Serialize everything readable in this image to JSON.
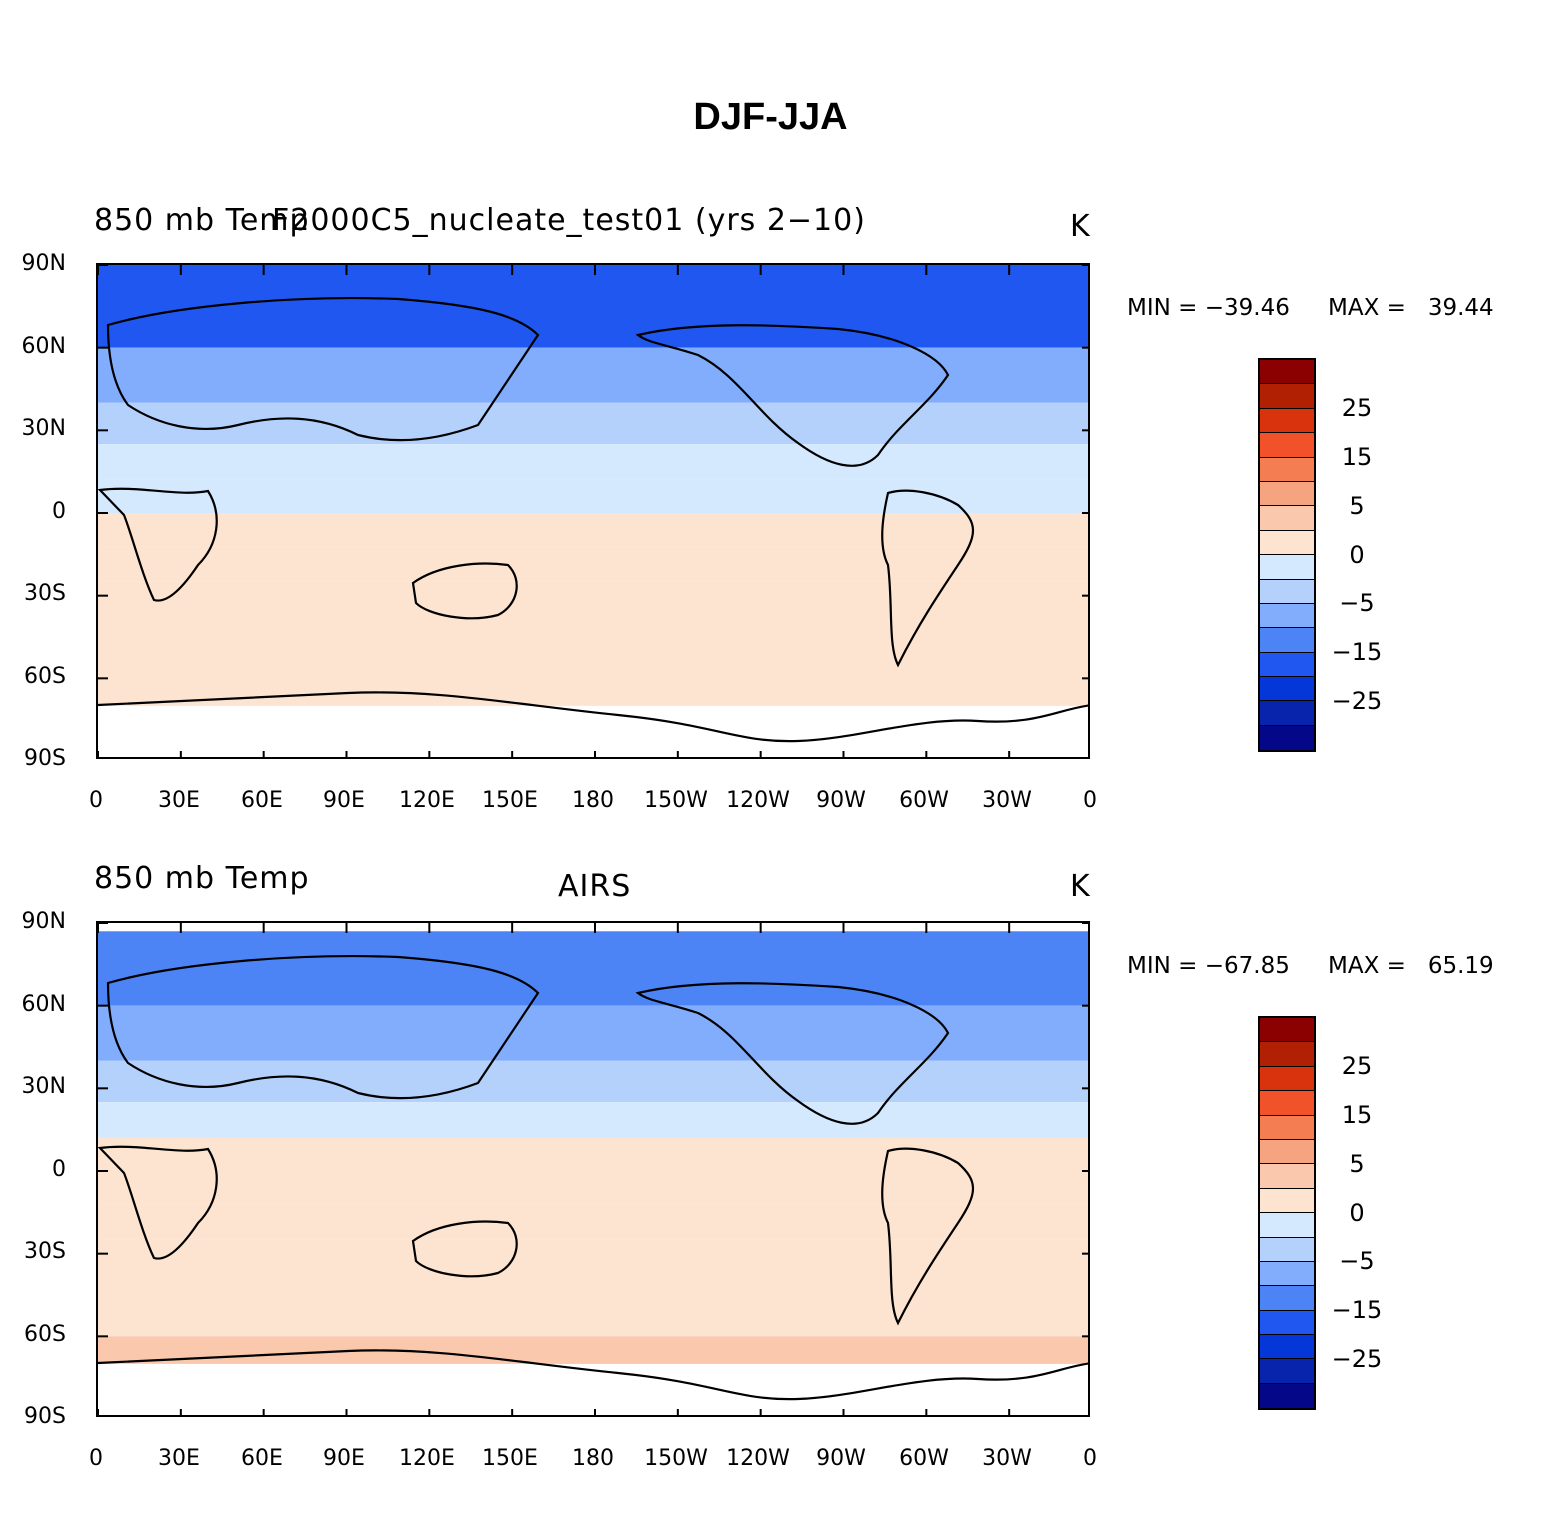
{
  "figure": {
    "title": "DJF-JJA"
  },
  "chart_data": [
    {
      "type": "heatmap",
      "title_left": "850 mb Temp",
      "title_center": "F2000C5_nucleate_test01 (yrs 2−10)",
      "units": "K",
      "min_label": "MIN = −39.46",
      "max_label": "MAX =   39.44",
      "min": -39.46,
      "max": 39.44,
      "lat_ticks": [
        "90N",
        "60N",
        "30N",
        "0",
        "30S",
        "60S",
        "90S"
      ],
      "lon_ticks": [
        "0",
        "30E",
        "60E",
        "90E",
        "120E",
        "150E",
        "180",
        "150W",
        "120W",
        "90W",
        "60W",
        "30W",
        "0"
      ],
      "xlim": [
        0,
        360
      ],
      "ylim": [
        -90,
        90
      ],
      "zonal_mean_bands": [
        {
          "lat_top": 90,
          "lat_bottom": 60,
          "value": -20
        },
        {
          "lat_top": 60,
          "lat_bottom": 40,
          "value": -12
        },
        {
          "lat_top": 40,
          "lat_bottom": 25,
          "value": -6
        },
        {
          "lat_top": 25,
          "lat_bottom": 12,
          "value": -2
        },
        {
          "lat_top": 12,
          "lat_bottom": 0,
          "value": -1
        },
        {
          "lat_top": 0,
          "lat_bottom": -12,
          "value": 1
        },
        {
          "lat_top": -12,
          "lat_bottom": -25,
          "value": 3
        },
        {
          "lat_top": -25,
          "lat_bottom": -45,
          "value": 5
        },
        {
          "lat_top": -45,
          "lat_bottom": -60,
          "value": 3
        },
        {
          "lat_top": -60,
          "lat_bottom": -70,
          "value": 5
        }
      ],
      "colorbar": {
        "colors": [
          "#8b0000",
          "#b22004",
          "#d8330d",
          "#f2522a",
          "#f57d52",
          "#f6a47f",
          "#f9c8ad",
          "#fde4d0",
          "#d5e9fe",
          "#b4d1fc",
          "#82adfc",
          "#4c84f6",
          "#2057f0",
          "#0536d8",
          "#0824ad",
          "#040888"
        ],
        "labels": [
          "25",
          "15",
          "5",
          "0",
          "−5",
          "−15",
          "−25"
        ]
      }
    },
    {
      "type": "heatmap",
      "title_left": "850 mb Temp",
      "title_center": "AIRS",
      "units": "K",
      "min_label": "MIN = −67.85",
      "max_label": "MAX =   65.19",
      "min": -67.85,
      "max": 65.19,
      "lat_ticks": [
        "90N",
        "60N",
        "30N",
        "0",
        "30S",
        "60S",
        "90S"
      ],
      "lon_ticks": [
        "0",
        "30E",
        "60E",
        "90E",
        "120E",
        "150E",
        "180",
        "150W",
        "120W",
        "90W",
        "60W",
        "30W",
        "0"
      ],
      "xlim": [
        0,
        360
      ],
      "ylim": [
        -90,
        90
      ],
      "zonal_mean_bands": [
        {
          "lat_top": 87,
          "lat_bottom": 60,
          "value": -18
        },
        {
          "lat_top": 60,
          "lat_bottom": 40,
          "value": -12
        },
        {
          "lat_top": 40,
          "lat_bottom": 25,
          "value": -6
        },
        {
          "lat_top": 25,
          "lat_bottom": 12,
          "value": -2
        },
        {
          "lat_top": 12,
          "lat_bottom": 0,
          "value": 1
        },
        {
          "lat_top": 0,
          "lat_bottom": -12,
          "value": 1
        },
        {
          "lat_top": -12,
          "lat_bottom": -25,
          "value": 3
        },
        {
          "lat_top": -25,
          "lat_bottom": -45,
          "value": 5
        },
        {
          "lat_top": -45,
          "lat_bottom": -60,
          "value": 5
        },
        {
          "lat_top": -60,
          "lat_bottom": -70,
          "value": 8
        }
      ],
      "colorbar": {
        "colors": [
          "#8b0000",
          "#b22004",
          "#d8330d",
          "#f2522a",
          "#f57d52",
          "#f6a47f",
          "#f9c8ad",
          "#fde4d0",
          "#d5e9fe",
          "#b4d1fc",
          "#82adfc",
          "#4c84f6",
          "#2057f0",
          "#0536d8",
          "#0824ad",
          "#040888"
        ],
        "labels": [
          "25",
          "15",
          "5",
          "0",
          "−5",
          "−15",
          "−25"
        ]
      }
    }
  ]
}
